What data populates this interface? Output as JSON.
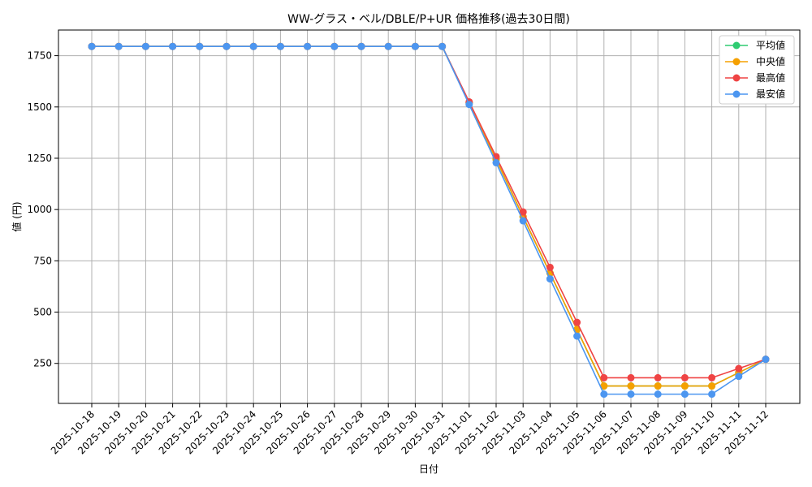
{
  "chart_data": {
    "type": "line",
    "title": "WW-グラス・ベル/DBLE/P+UR 価格推移(過去30日間)",
    "xlabel": "日付",
    "ylabel": "値 (円)",
    "ylim": [
      55,
      1875
    ],
    "yticks": [
      250,
      500,
      750,
      1000,
      1250,
      1500,
      1750
    ],
    "grid": true,
    "legend_position": "top-right",
    "categories": [
      "2025-10-18",
      "2025-10-19",
      "2025-10-20",
      "2025-10-21",
      "2025-10-22",
      "2025-10-23",
      "2025-10-24",
      "2025-10-25",
      "2025-10-26",
      "2025-10-27",
      "2025-10-28",
      "2025-10-29",
      "2025-10-30",
      "2025-10-31",
      "2025-11-01",
      "2025-11-02",
      "2025-11-03",
      "2025-11-04",
      "2025-11-05",
      "2025-11-06",
      "2025-11-07",
      "2025-11-08",
      "2025-11-09",
      "2025-11-10",
      "2025-11-11",
      "2025-11-12"
    ],
    "series": [
      {
        "name": "平均値",
        "color": "#2ecc71",
        "values": [
          1795,
          1795,
          1795,
          1795,
          1795,
          1795,
          1795,
          1795,
          1795,
          1795,
          1795,
          1795,
          1795,
          1795,
          1520,
          1245,
          965,
          690,
          415,
          140,
          140,
          140,
          140,
          140,
          205,
          270
        ]
      },
      {
        "name": "中央値",
        "color": "#f5a000",
        "values": [
          1795,
          1795,
          1795,
          1795,
          1795,
          1795,
          1795,
          1795,
          1795,
          1795,
          1795,
          1795,
          1795,
          1795,
          1520,
          1245,
          965,
          690,
          415,
          140,
          140,
          140,
          140,
          140,
          205,
          270
        ]
      },
      {
        "name": "最高値",
        "color": "#ef4444",
        "values": [
          1795,
          1795,
          1795,
          1795,
          1795,
          1795,
          1795,
          1795,
          1795,
          1795,
          1795,
          1795,
          1795,
          1795,
          1525,
          1258,
          988,
          718,
          450,
          180,
          180,
          180,
          180,
          180,
          225,
          270
        ]
      },
      {
        "name": "最安値",
        "color": "#4c96f0",
        "values": [
          1795,
          1795,
          1795,
          1795,
          1795,
          1795,
          1795,
          1795,
          1795,
          1795,
          1795,
          1795,
          1795,
          1795,
          1512,
          1228,
          945,
          662,
          383,
          100,
          100,
          100,
          100,
          100,
          187,
          270
        ]
      }
    ]
  }
}
